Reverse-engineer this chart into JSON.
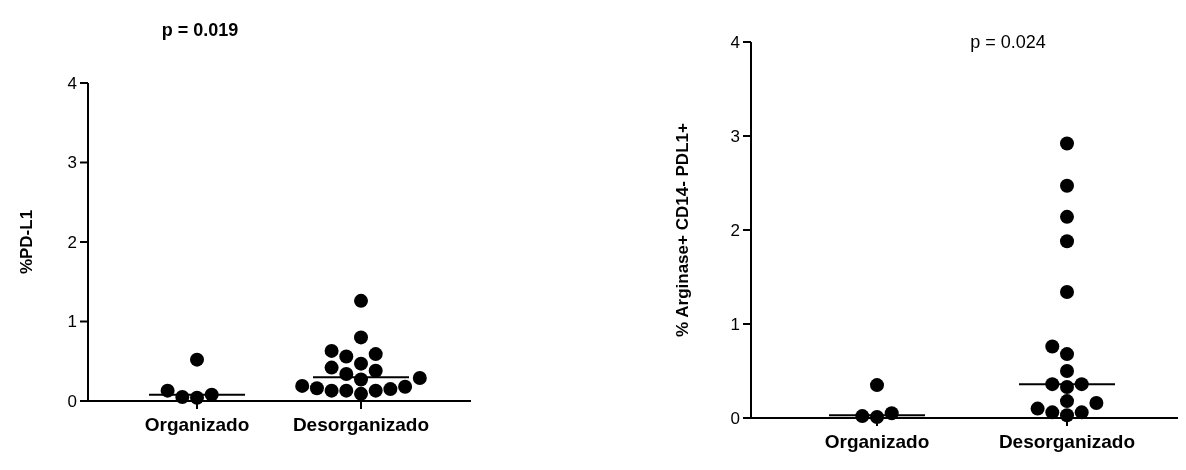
{
  "chart_data": [
    {
      "type": "scatter",
      "title": "p = 0.019",
      "ylabel": "%PD-L1",
      "categories": [
        "Organizado",
        "Desorganizado"
      ],
      "ylim": [
        0,
        4
      ],
      "yticks": [
        0,
        1,
        2,
        3,
        4
      ],
      "marker": "circle",
      "grid": false,
      "series": [
        {
          "color": "#000000",
          "x": [
            "Organizado",
            "Organizado",
            "Organizado",
            "Organizado",
            "Organizado",
            "Desorganizado",
            "Desorganizado",
            "Desorganizado",
            "Desorganizado",
            "Desorganizado",
            "Desorganizado",
            "Desorganizado",
            "Desorganizado",
            "Desorganizado",
            "Desorganizado",
            "Desorganizado",
            "Desorganizado",
            "Desorganizado",
            "Desorganizado",
            "Desorganizado",
            "Desorganizado",
            "Desorganizado",
            "Desorganizado",
            "Desorganizado"
          ],
          "values": [
            0.04,
            0.13,
            0.52,
            0.05,
            0.08,
            1.26,
            0.8,
            0.63,
            0.59,
            0.56,
            0.47,
            0.38,
            0.42,
            0.29,
            0.27,
            0.34,
            0.13,
            0.19,
            0.15,
            0.18,
            0.09,
            0.16,
            0.13,
            0.13
          ]
        },
        {
          "type": "box",
          "color": "#000000",
          "boxes": [
            {
              "low": 0.08,
              "q1": 0.08,
              "median": 0.08,
              "q3": 0.08,
              "high": 0.08
            },
            {
              "low": 0.3,
              "q1": 0.3,
              "median": 0.3,
              "q3": 0.3,
              "high": 0.3
            }
          ]
        }
      ]
    },
    {
      "type": "scatter",
      "title": "p = 0.024",
      "ylabel": "% Arginase+ CD14-  PDL1+",
      "categories": [
        "Organizado",
        "Desorganizado"
      ],
      "ylim": [
        0,
        4
      ],
      "yticks": [
        0,
        1,
        2,
        3,
        4
      ],
      "marker": "circle",
      "grid": false,
      "series": [
        {
          "color": "#000000",
          "x": [
            "Organizado",
            "Organizado",
            "Organizado",
            "Organizado",
            "Desorganizado",
            "Desorganizado",
            "Desorganizado",
            "Desorganizado",
            "Desorganizado",
            "Desorganizado",
            "Desorganizado",
            "Desorganizado",
            "Desorganizado",
            "Desorganizado",
            "Desorganizado",
            "Desorganizado",
            "Desorganizado",
            "Desorganizado",
            "Desorganizado",
            "Desorganizado",
            "Desorganizado"
          ],
          "values": [
            0.01,
            0.05,
            0.35,
            0.02,
            2.92,
            2.47,
            2.14,
            1.88,
            1.34,
            0.76,
            0.68,
            0.5,
            0.36,
            0.33,
            0.36,
            0.18,
            0.16,
            0.06,
            0.06,
            0.03,
            0.1
          ]
        },
        {
          "type": "box",
          "color": "#000000",
          "boxes": [
            {
              "low": 0.03,
              "q1": 0.03,
              "median": 0.03,
              "q3": 0.03,
              "high": 0.03
            },
            {
              "low": 0.36,
              "q1": 0.36,
              "median": 0.36,
              "q3": 0.36,
              "high": 0.36
            }
          ]
        }
      ]
    }
  ]
}
